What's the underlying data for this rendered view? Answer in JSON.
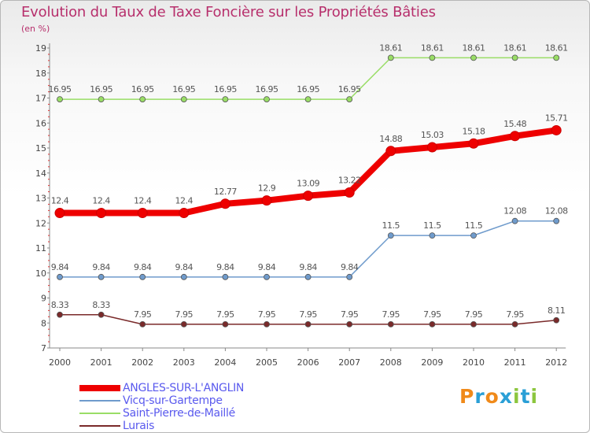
{
  "chart_data": {
    "type": "line",
    "title": "Evolution du Taux de Taxe Foncière sur les Propriétés Bâties",
    "subtitle": "(en %)",
    "categories": [
      "2000",
      "2001",
      "2002",
      "2003",
      "2004",
      "2005",
      "2006",
      "2007",
      "2008",
      "2009",
      "2010",
      "2011",
      "2012"
    ],
    "ylim": [
      7,
      19
    ],
    "yticks": [
      "7",
      "8",
      "9",
      "10",
      "11",
      "12",
      "13",
      "14",
      "15",
      "16",
      "17",
      "18",
      "19"
    ],
    "grid": false,
    "legend_position": "bottom-left",
    "series": [
      {
        "name": "ANGLES-SUR-L'ANGLIN",
        "color": "#ee0000",
        "label_color": "#555555",
        "values": [
          12.4,
          12.4,
          12.4,
          12.4,
          12.77,
          12.9,
          13.09,
          13.22,
          14.88,
          15.03,
          15.18,
          15.48,
          15.71
        ],
        "labels": [
          "12.4",
          "12.4",
          "12.4",
          "12.4",
          "12.77",
          "12.9",
          "13.09",
          "13.22",
          "14.88",
          "15.03",
          "15.18",
          "15.48",
          "15.71"
        ]
      },
      {
        "name": "Vicq-sur-Gartempe",
        "color": "#6f9bcc",
        "label_color": "#555555",
        "values": [
          9.84,
          9.84,
          9.84,
          9.84,
          9.84,
          9.84,
          9.84,
          9.84,
          11.5,
          11.5,
          11.5,
          12.08,
          12.08
        ],
        "labels": [
          "9.84",
          "9.84",
          "9.84",
          "9.84",
          "9.84",
          "9.84",
          "9.84",
          "9.84",
          "11.5",
          "11.5",
          "11.5",
          "12.08",
          "12.08"
        ]
      },
      {
        "name": "Saint-Pierre-de-Maillé",
        "color": "#99dd66",
        "label_color": "#555555",
        "values": [
          16.95,
          16.95,
          16.95,
          16.95,
          16.95,
          16.95,
          16.95,
          16.95,
          18.61,
          18.61,
          18.61,
          18.61,
          18.61
        ],
        "labels": [
          "16.95",
          "16.95",
          "16.95",
          "16.95",
          "16.95",
          "16.95",
          "16.95",
          "16.95",
          "18.61",
          "18.61",
          "18.61",
          "18.61",
          "18.61"
        ]
      },
      {
        "name": "Lurais",
        "color": "#7a2a2a",
        "label_color": "#555555",
        "values": [
          8.33,
          8.33,
          7.95,
          7.95,
          7.95,
          7.95,
          7.95,
          7.95,
          7.95,
          7.95,
          7.95,
          7.95,
          8.11
        ],
        "labels": [
          "8.33",
          "8.33",
          "7.95",
          "7.95",
          "7.95",
          "7.95",
          "7.95",
          "7.95",
          "7.95",
          "7.95",
          "7.95",
          "7.95",
          "8.11"
        ]
      }
    ]
  },
  "legend_text_color": "#5a5aee",
  "logo": {
    "letters": [
      "P",
      "r",
      "o",
      "x",
      "i",
      "t",
      "i"
    ],
    "colors": [
      "#f08a1a",
      "#2a9fd6",
      "#f08a1a",
      "#2a9fd6",
      "#8cc63e",
      "#2a9fd6",
      "#8cc63e"
    ]
  }
}
